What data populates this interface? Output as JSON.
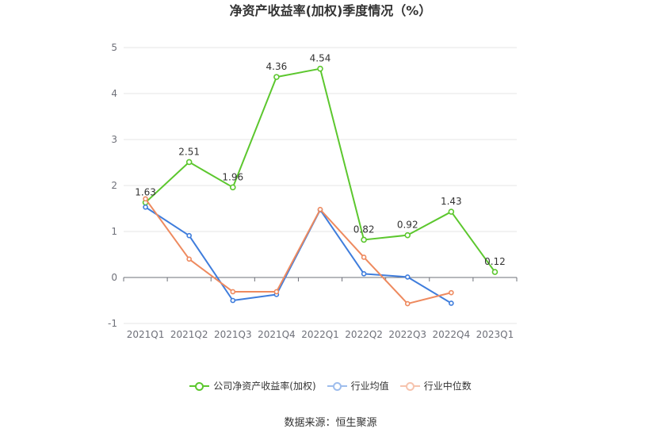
{
  "chart_data": {
    "type": "line",
    "title": "净资产收益率(加权)季度情况（%）",
    "categories": [
      "2021Q1",
      "2021Q2",
      "2021Q3",
      "2021Q4",
      "2022Q1",
      "2022Q2",
      "2022Q3",
      "2022Q4",
      "2023Q1"
    ],
    "series": [
      {
        "name": "公司净资产收益率(加权)",
        "color": "#5cc72e",
        "show_labels": true,
        "values": [
          1.63,
          2.51,
          1.96,
          4.36,
          4.54,
          0.82,
          0.92,
          1.43,
          0.12
        ]
      },
      {
        "name": "行业均值",
        "color": "#3f7ddc",
        "show_labels": false,
        "values": [
          1.53,
          0.91,
          -0.5,
          -0.37,
          1.47,
          0.08,
          0.01,
          -0.56,
          null
        ]
      },
      {
        "name": "行业中位数",
        "color": "#ee8a5f",
        "show_labels": false,
        "values": [
          1.71,
          0.4,
          -0.31,
          -0.31,
          1.48,
          0.44,
          -0.57,
          -0.33,
          null
        ]
      }
    ],
    "ylim": [
      -1,
      5
    ],
    "yticks": [
      -1,
      0,
      1,
      2,
      3,
      4,
      5
    ],
    "grid": true,
    "legend_position": "bottom"
  },
  "source": "数据来源：恒生聚源"
}
